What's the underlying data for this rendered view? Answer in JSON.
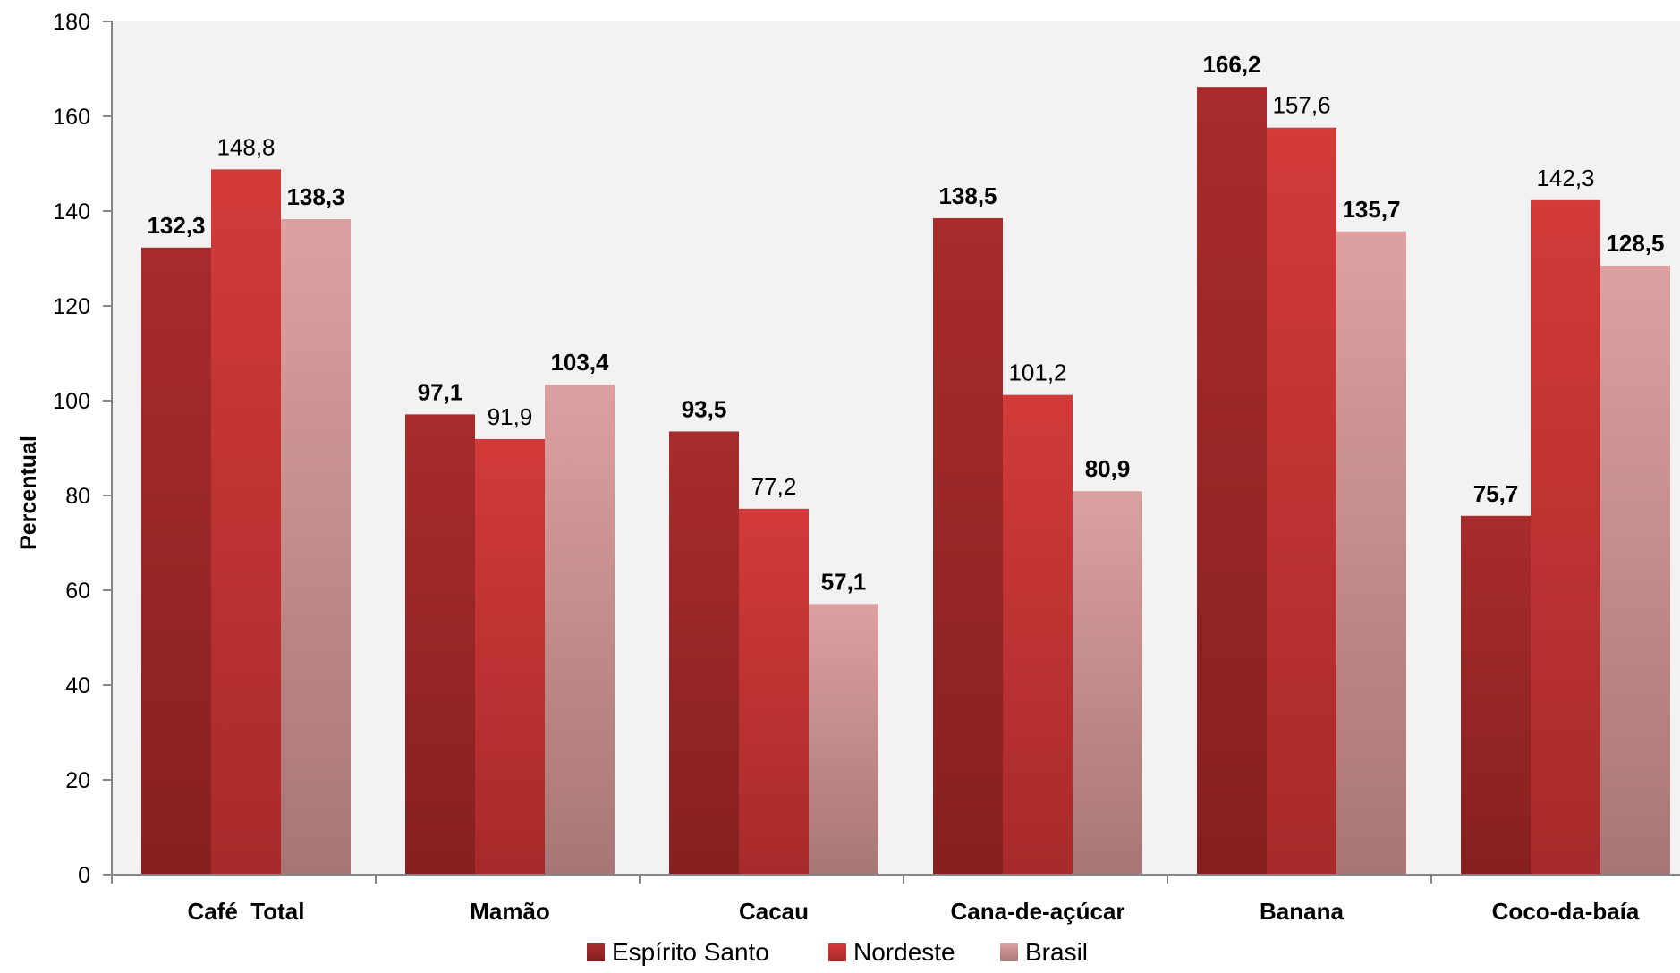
{
  "chart_data": {
    "type": "bar",
    "title": "",
    "xlabel": "",
    "ylabel": "Percentual",
    "ylim": [
      0,
      180
    ],
    "yticks": [
      0,
      20,
      40,
      60,
      80,
      100,
      120,
      140,
      160,
      180
    ],
    "grid": false,
    "legend": "bottom-center",
    "categories": [
      "Café  Total",
      "Mamão",
      "Cacau",
      "Cana-de-açúcar",
      "Banana",
      "Coco-da-baía"
    ],
    "series": [
      {
        "name": "Espírito Santo",
        "color_top": "#a82c2c",
        "color_bottom": "#86201f",
        "values": [
          132.3,
          97.1,
          93.5,
          138.5,
          166.2,
          75.7
        ],
        "labels": [
          "132,3",
          "97,1",
          "93,5",
          "138,5",
          "166,2",
          "75,7"
        ],
        "label_bold": [
          true,
          true,
          true,
          true,
          true,
          true
        ]
      },
      {
        "name": "Nordeste",
        "color_top": "#d33a3a",
        "color_bottom": "#a82a2a",
        "values": [
          148.8,
          91.9,
          77.2,
          101.2,
          157.6,
          142.3
        ],
        "labels": [
          "148,8",
          "91,9",
          "77,2",
          "101,2",
          "157,6",
          "142,3"
        ],
        "label_bold": [
          false,
          false,
          false,
          false,
          false,
          false
        ]
      },
      {
        "name": "Brasil",
        "color_top": "#dda0a0",
        "color_bottom": "#a87676",
        "values": [
          138.3,
          103.4,
          57.1,
          80.9,
          135.7,
          128.5
        ],
        "labels": [
          "138,3",
          "103,4",
          "57,1",
          "80,9",
          "135,7",
          "128,5"
        ],
        "label_bold": [
          true,
          true,
          true,
          true,
          true,
          true
        ]
      }
    ],
    "plot_background": "#f2f2f2"
  }
}
